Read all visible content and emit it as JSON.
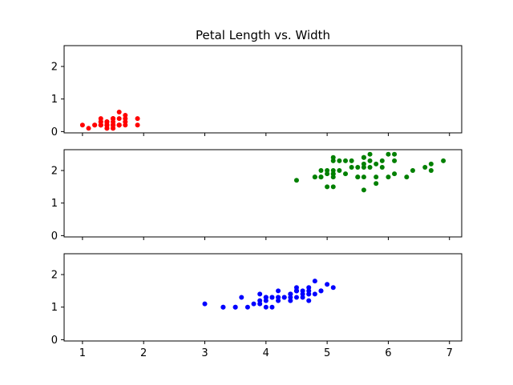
{
  "chart_data": {
    "type": "scatter",
    "title": "Petal Length vs. Width",
    "xlabel": "",
    "ylabel": "",
    "xlim": [
      0.7,
      7.2
    ],
    "ylim": [
      -0.04,
      2.64
    ],
    "x_ticks": [
      1,
      2,
      3,
      4,
      5,
      6,
      7
    ],
    "y_ticks": [
      0,
      1,
      2
    ],
    "sharex": true,
    "grid": false,
    "legend": "none",
    "subplots": [
      {
        "color": "#ff0000",
        "points": [
          [
            1.4,
            0.2
          ],
          [
            1.4,
            0.2
          ],
          [
            1.3,
            0.2
          ],
          [
            1.5,
            0.2
          ],
          [
            1.4,
            0.2
          ],
          [
            1.7,
            0.4
          ],
          [
            1.4,
            0.3
          ],
          [
            1.5,
            0.2
          ],
          [
            1.4,
            0.2
          ],
          [
            1.5,
            0.1
          ],
          [
            1.5,
            0.2
          ],
          [
            1.6,
            0.2
          ],
          [
            1.4,
            0.1
          ],
          [
            1.1,
            0.1
          ],
          [
            1.2,
            0.2
          ],
          [
            1.5,
            0.4
          ],
          [
            1.3,
            0.4
          ],
          [
            1.4,
            0.3
          ],
          [
            1.7,
            0.3
          ],
          [
            1.5,
            0.3
          ],
          [
            1.7,
            0.2
          ],
          [
            1.5,
            0.4
          ],
          [
            1.0,
            0.2
          ],
          [
            1.7,
            0.5
          ],
          [
            1.9,
            0.2
          ],
          [
            1.6,
            0.2
          ],
          [
            1.6,
            0.4
          ],
          [
            1.5,
            0.2
          ],
          [
            1.4,
            0.2
          ],
          [
            1.6,
            0.2
          ],
          [
            1.6,
            0.2
          ],
          [
            1.5,
            0.4
          ],
          [
            1.5,
            0.1
          ],
          [
            1.4,
            0.2
          ],
          [
            1.5,
            0.2
          ],
          [
            1.2,
            0.2
          ],
          [
            1.3,
            0.2
          ],
          [
            1.4,
            0.1
          ],
          [
            1.3,
            0.2
          ],
          [
            1.5,
            0.2
          ],
          [
            1.3,
            0.3
          ],
          [
            1.3,
            0.3
          ],
          [
            1.3,
            0.2
          ],
          [
            1.6,
            0.6
          ],
          [
            1.9,
            0.4
          ],
          [
            1.4,
            0.3
          ],
          [
            1.6,
            0.2
          ],
          [
            1.4,
            0.2
          ],
          [
            1.5,
            0.2
          ],
          [
            1.4,
            0.2
          ]
        ]
      },
      {
        "color": "#008000",
        "points": [
          [
            6.0,
            2.5
          ],
          [
            5.1,
            1.9
          ],
          [
            5.9,
            2.1
          ],
          [
            5.6,
            1.8
          ],
          [
            5.8,
            2.2
          ],
          [
            6.6,
            2.1
          ],
          [
            4.5,
            1.7
          ],
          [
            6.3,
            1.8
          ],
          [
            5.8,
            1.8
          ],
          [
            6.1,
            2.5
          ],
          [
            5.1,
            2.0
          ],
          [
            5.3,
            1.9
          ],
          [
            5.5,
            2.1
          ],
          [
            5.0,
            2.0
          ],
          [
            5.1,
            2.4
          ],
          [
            5.3,
            2.3
          ],
          [
            5.5,
            1.8
          ],
          [
            6.7,
            2.2
          ],
          [
            6.9,
            2.3
          ],
          [
            5.0,
            1.5
          ],
          [
            5.7,
            2.3
          ],
          [
            4.9,
            2.0
          ],
          [
            6.7,
            2.0
          ],
          [
            4.9,
            1.8
          ],
          [
            5.7,
            2.1
          ],
          [
            6.0,
            1.8
          ],
          [
            4.8,
            1.8
          ],
          [
            4.9,
            1.8
          ],
          [
            5.6,
            2.1
          ],
          [
            5.8,
            1.6
          ],
          [
            6.1,
            1.9
          ],
          [
            6.4,
            2.0
          ],
          [
            5.6,
            2.2
          ],
          [
            5.1,
            1.5
          ],
          [
            5.6,
            1.4
          ],
          [
            6.1,
            2.3
          ],
          [
            5.6,
            2.4
          ],
          [
            5.5,
            1.8
          ],
          [
            4.8,
            1.8
          ],
          [
            5.4,
            2.1
          ],
          [
            5.6,
            2.4
          ],
          [
            5.1,
            2.3
          ],
          [
            5.1,
            1.9
          ],
          [
            5.9,
            2.3
          ],
          [
            5.7,
            2.5
          ],
          [
            5.2,
            2.3
          ],
          [
            5.0,
            1.9
          ],
          [
            5.2,
            2.0
          ],
          [
            5.4,
            2.3
          ],
          [
            5.1,
            1.8
          ]
        ]
      },
      {
        "color": "#0000ff",
        "points": [
          [
            4.7,
            1.4
          ],
          [
            4.5,
            1.5
          ],
          [
            4.9,
            1.5
          ],
          [
            4.0,
            1.3
          ],
          [
            4.6,
            1.5
          ],
          [
            4.5,
            1.3
          ],
          [
            4.7,
            1.6
          ],
          [
            3.3,
            1.0
          ],
          [
            4.6,
            1.3
          ],
          [
            3.9,
            1.4
          ],
          [
            3.5,
            1.0
          ],
          [
            4.2,
            1.5
          ],
          [
            4.0,
            1.0
          ],
          [
            4.7,
            1.4
          ],
          [
            3.6,
            1.3
          ],
          [
            4.4,
            1.4
          ],
          [
            4.5,
            1.5
          ],
          [
            4.1,
            1.0
          ],
          [
            4.5,
            1.5
          ],
          [
            3.9,
            1.1
          ],
          [
            4.8,
            1.8
          ],
          [
            4.0,
            1.3
          ],
          [
            4.9,
            1.5
          ],
          [
            4.7,
            1.2
          ],
          [
            4.3,
            1.3
          ],
          [
            4.4,
            1.4
          ],
          [
            4.8,
            1.4
          ],
          [
            5.0,
            1.7
          ],
          [
            4.5,
            1.5
          ],
          [
            3.5,
            1.0
          ],
          [
            3.8,
            1.1
          ],
          [
            3.7,
            1.0
          ],
          [
            3.9,
            1.2
          ],
          [
            5.1,
            1.6
          ],
          [
            4.5,
            1.5
          ],
          [
            4.5,
            1.6
          ],
          [
            4.7,
            1.5
          ],
          [
            4.4,
            1.3
          ],
          [
            4.1,
            1.3
          ],
          [
            4.0,
            1.3
          ],
          [
            4.4,
            1.2
          ],
          [
            4.6,
            1.4
          ],
          [
            4.0,
            1.2
          ],
          [
            3.3,
            1.0
          ],
          [
            4.2,
            1.3
          ],
          [
            4.2,
            1.2
          ],
          [
            4.2,
            1.3
          ],
          [
            4.3,
            1.3
          ],
          [
            3.0,
            1.1
          ],
          [
            4.1,
            1.3
          ]
        ]
      }
    ]
  }
}
